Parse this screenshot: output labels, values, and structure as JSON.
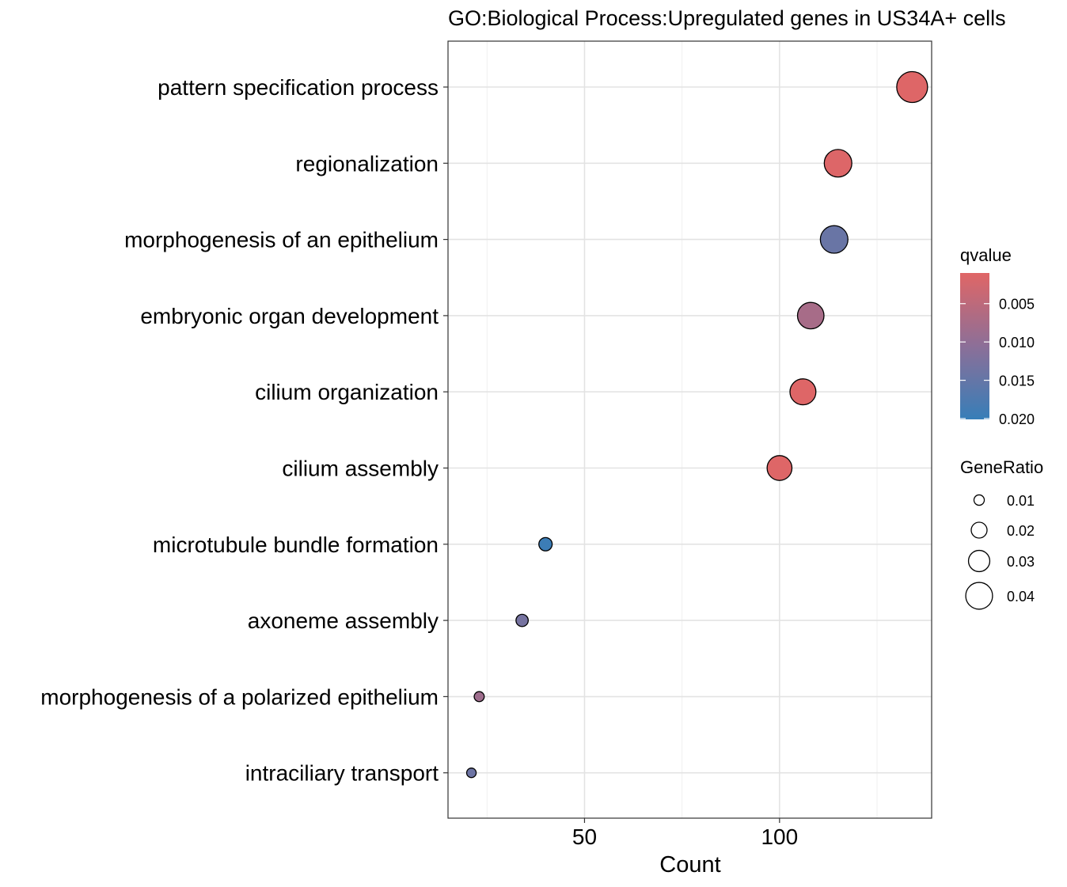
{
  "chart_data": {
    "type": "scatter",
    "title": "GO:Biological Process:Upregulated genes in US34A+ cells",
    "xlabel": "Count",
    "ylabel": "",
    "xlim": [
      15,
      139
    ],
    "xticks": [
      50,
      100
    ],
    "xtick_labels": [
      "50",
      "100"
    ],
    "grid": true,
    "categories": [
      "pattern specification process",
      "regionalization",
      "morphogenesis of an epithelium",
      "embryonic organ development",
      "cilium organization",
      "cilium assembly",
      "microtubule bundle formation",
      "axoneme assembly",
      "morphogenesis of a polarized epithelium",
      "intraciliary transport"
    ],
    "points": [
      {
        "term": "pattern specification process",
        "count": 134,
        "qvalue": 0.0012,
        "gene_ratio": 0.046
      },
      {
        "term": "regionalization",
        "count": 115,
        "qvalue": 0.0013,
        "gene_ratio": 0.04
      },
      {
        "term": "morphogenesis of an epithelium",
        "count": 114,
        "qvalue": 0.0145,
        "gene_ratio": 0.04
      },
      {
        "term": "embryonic organ development",
        "count": 108,
        "qvalue": 0.0075,
        "gene_ratio": 0.038
      },
      {
        "term": "cilium organization",
        "count": 106,
        "qvalue": 0.0012,
        "gene_ratio": 0.037
      },
      {
        "term": "cilium assembly",
        "count": 100,
        "qvalue": 0.0012,
        "gene_ratio": 0.035
      },
      {
        "term": "microtubule bundle formation",
        "count": 40,
        "qvalue": 0.0195,
        "gene_ratio": 0.014
      },
      {
        "term": "axoneme assembly",
        "count": 34,
        "qvalue": 0.013,
        "gene_ratio": 0.012
      },
      {
        "term": "morphogenesis of a polarized epithelium",
        "count": 23,
        "qvalue": 0.0085,
        "gene_ratio": 0.008
      },
      {
        "term": "intraciliary transport",
        "count": 21,
        "qvalue": 0.014,
        "gene_ratio": 0.007
      }
    ],
    "color_legend": {
      "title": "qvalue",
      "ticks": [
        0.005,
        0.01,
        0.015,
        0.02
      ],
      "tick_labels": [
        "0.005",
        "0.010",
        "0.015",
        "0.020"
      ],
      "min": 0.001,
      "max": 0.0201,
      "low_color": "#E06666",
      "mid_color": "#8C6F98",
      "high_color": "#377EB8"
    },
    "size_legend": {
      "title": "GeneRatio",
      "values": [
        0.01,
        0.02,
        0.03,
        0.04
      ],
      "labels": [
        "0.01",
        "0.02",
        "0.03",
        "0.04"
      ]
    }
  }
}
